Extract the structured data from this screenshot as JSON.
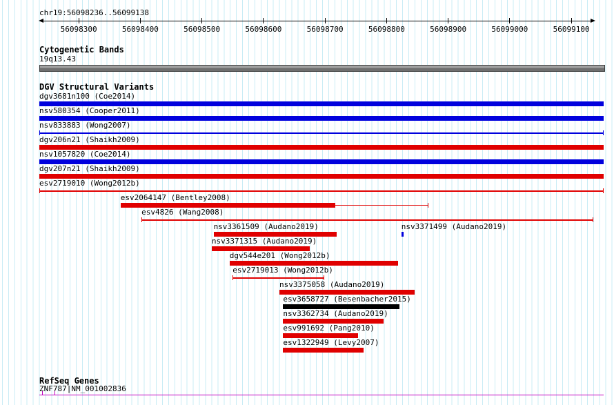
{
  "header": {
    "region_label": "chr19:56098236..56099138"
  },
  "chart_data": {
    "type": "bar",
    "subtype": "genome-browser-horizontal-tracks",
    "axis": {
      "chrom": "chr19",
      "start": 56098236,
      "end": 56099138,
      "units": "bp",
      "tick_interval": 100,
      "ticks": [
        "56098300",
        "56098400",
        "56098500",
        "56098600",
        "56098700",
        "56098800",
        "56098900",
        "56099000",
        "56099100"
      ]
    },
    "colors": {
      "blue": "#0000dd",
      "red": "#e00000",
      "black": "#000000",
      "gene": "#c000c0",
      "cytoband": "#8f8f8f",
      "grid": "#c9ecf5"
    },
    "sections": {
      "cytobands": {
        "title": "Cytogenetic Bands",
        "band_label": "19q13.43"
      },
      "dgv": {
        "title": "DGV Structural Variants"
      },
      "refseq": {
        "title": "RefSeq Genes",
        "gene_label": "ZNF787|NM_001002836"
      }
    },
    "variants": [
      {
        "label": "dgv3681n100 (Coe2014)",
        "row": 0,
        "shape": "bar",
        "color": "blue",
        "full": true,
        "start": 56098236,
        "end": 56099138
      },
      {
        "label": "nsv580354 (Cooper2011)",
        "row": 1,
        "shape": "bar",
        "color": "blue",
        "full": true,
        "start": 56098236,
        "end": 56099138
      },
      {
        "label": "nsv833883 (Wong2007)",
        "row": 2,
        "shape": "line",
        "color": "blue",
        "full": true,
        "start": 56098236,
        "end": 56099138
      },
      {
        "label": "dgv206n21 (Shaikh2009)",
        "row": 3,
        "shape": "bar",
        "color": "red",
        "full": true,
        "start": 56098236,
        "end": 56099138
      },
      {
        "label": "nsv1057820 (Coe2014)",
        "row": 4,
        "shape": "bar",
        "color": "blue",
        "full": true,
        "start": 56098236,
        "end": 56099138
      },
      {
        "label": "dgv207n21 (Shaikh2009)",
        "row": 5,
        "shape": "bar",
        "color": "red",
        "full": true,
        "start": 56098236,
        "end": 56099138
      },
      {
        "label": "esv2719010 (Wong2012b)",
        "row": 6,
        "shape": "line",
        "color": "red",
        "full": true,
        "start": 56098236,
        "end": 56099138
      },
      {
        "label": "esv2064147 (Bentley2008)",
        "row": 7,
        "shape": "bar",
        "color": "red",
        "start": 56098368,
        "end": 56098717,
        "ext_end": 56098867
      },
      {
        "label": "esv4826 (Wang2008)",
        "row": 8,
        "shape": "line",
        "color": "red",
        "start": 56098402,
        "end": 56099136
      },
      {
        "label": "nsv3361509 (Audano2019)",
        "row": 9,
        "shape": "bar",
        "color": "red",
        "start": 56098519,
        "end": 56098719
      },
      {
        "label": "nsv3371499 (Audano2019)",
        "row": 9,
        "shape": "tick",
        "color": "blue",
        "start": 56098824,
        "end": 56098826
      },
      {
        "label": "nsv3371315 (Audano2019)",
        "row": 10,
        "shape": "bar",
        "color": "red",
        "start": 56098516,
        "end": 56098675
      },
      {
        "label": "dgv544e201 (Wong2012b)",
        "row": 11,
        "shape": "bar",
        "color": "red",
        "start": 56098545,
        "end": 56098819
      },
      {
        "label": "esv2719013 (Wong2012b)",
        "row": 12,
        "shape": "line",
        "color": "red",
        "start": 56098550,
        "end": 56098699
      },
      {
        "label": "nsv3375058 (Audano2019)",
        "row": 13,
        "shape": "bar",
        "color": "red",
        "start": 56098626,
        "end": 56098846
      },
      {
        "label": "esv3658727 (Besenbacher2015)",
        "row": 14,
        "shape": "bar",
        "color": "black",
        "start": 56098632,
        "end": 56098821
      },
      {
        "label": "nsv3362734 (Audano2019)",
        "row": 15,
        "shape": "bar",
        "color": "red",
        "start": 56098632,
        "end": 56098795
      },
      {
        "label": "esv991692 (Pang2010)",
        "row": 16,
        "shape": "bar",
        "color": "red",
        "start": 56098632,
        "end": 56098754
      },
      {
        "label": "esv1322949 (Levy2007)",
        "row": 17,
        "shape": "bar",
        "color": "red",
        "start": 56098632,
        "end": 56098763
      }
    ]
  }
}
